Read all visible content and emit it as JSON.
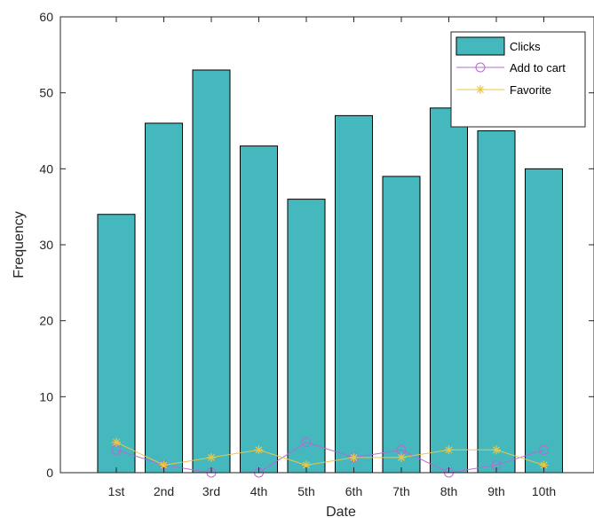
{
  "chart_data": {
    "type": "bar",
    "title": "",
    "xlabel": "Date",
    "ylabel": "Frequency",
    "categories": [
      "1st",
      "2nd",
      "3rd",
      "4th",
      "5th",
      "6th",
      "7th",
      "8th",
      "9th",
      "10th"
    ],
    "ylim": [
      0,
      60
    ],
    "yticks": [
      0,
      10,
      20,
      30,
      40,
      50,
      60
    ],
    "grid": false,
    "legend_position": "top-right",
    "series": [
      {
        "name": "Clicks",
        "kind": "bar",
        "color": "#45b8be",
        "values": [
          34,
          46,
          53,
          43,
          36,
          47,
          39,
          48,
          45,
          40
        ]
      },
      {
        "name": "Add to cart",
        "kind": "line",
        "marker": "circle",
        "color": "#b36bd1",
        "values": [
          3,
          1,
          0,
          0,
          4,
          2,
          3,
          0,
          1,
          3
        ]
      },
      {
        "name": "Favorite",
        "kind": "line",
        "marker": "star",
        "color": "#e8c84a",
        "values": [
          4,
          1,
          2,
          3,
          1,
          2,
          2,
          3,
          3,
          1
        ]
      }
    ]
  }
}
